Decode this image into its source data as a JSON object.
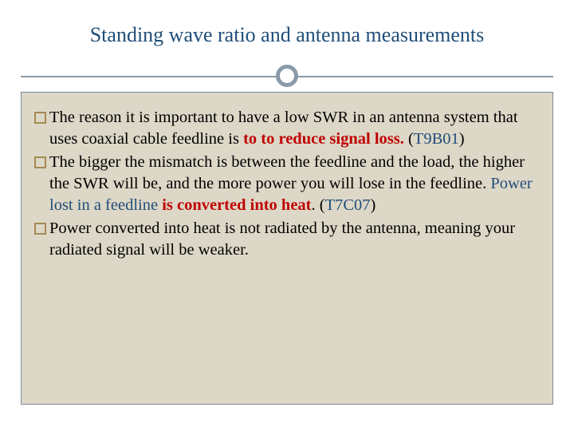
{
  "slide": {
    "title": "Standing wave ratio and antenna measurements",
    "title_color": "#1f4e79",
    "title_fontsize": 26,
    "background_color": "#ffffff",
    "body_background": "#ddd7c7",
    "body_border_color": "#7d8c99",
    "divider_color": "#8a9aa8",
    "bullet_border_color": "#a58a55",
    "body_fontsize": 20.5,
    "text_colors": {
      "default": "#000000",
      "blue": "#1f4e79",
      "red": "#c00000"
    },
    "bullets": [
      {
        "runs": [
          {
            "text": "The reason it is important to have a low SWR in an antenna system that uses coaxial cable feedline is ",
            "style": "default"
          },
          {
            "text": "to to reduce signal loss.",
            "style": "red-bold"
          },
          {
            "text": " ",
            "style": "default"
          },
          {
            "text": "(",
            "style": "ref-paren"
          },
          {
            "text": "T9B01",
            "style": "blue"
          },
          {
            "text": ")",
            "style": "ref-paren"
          }
        ]
      },
      {
        "runs": [
          {
            "text": "The bigger the mismatch is between the feedline and the load, the higher the SWR will be, and the more power you will lose in the feedline. ",
            "style": "default"
          },
          {
            "text": "Power lost in a feedline ",
            "style": "blue"
          },
          {
            "text": "is converted into heat",
            "style": "red-bold"
          },
          {
            "text": ". ",
            "style": "default"
          },
          {
            "text": "(",
            "style": "ref-paren"
          },
          {
            "text": "T7C07",
            "style": "blue"
          },
          {
            "text": ")",
            "style": "ref-paren"
          }
        ]
      },
      {
        "runs": [
          {
            "text": "Power converted into heat is not radiated by the antenna, meaning your radiated signal will be weaker.",
            "style": "default"
          }
        ]
      }
    ]
  }
}
